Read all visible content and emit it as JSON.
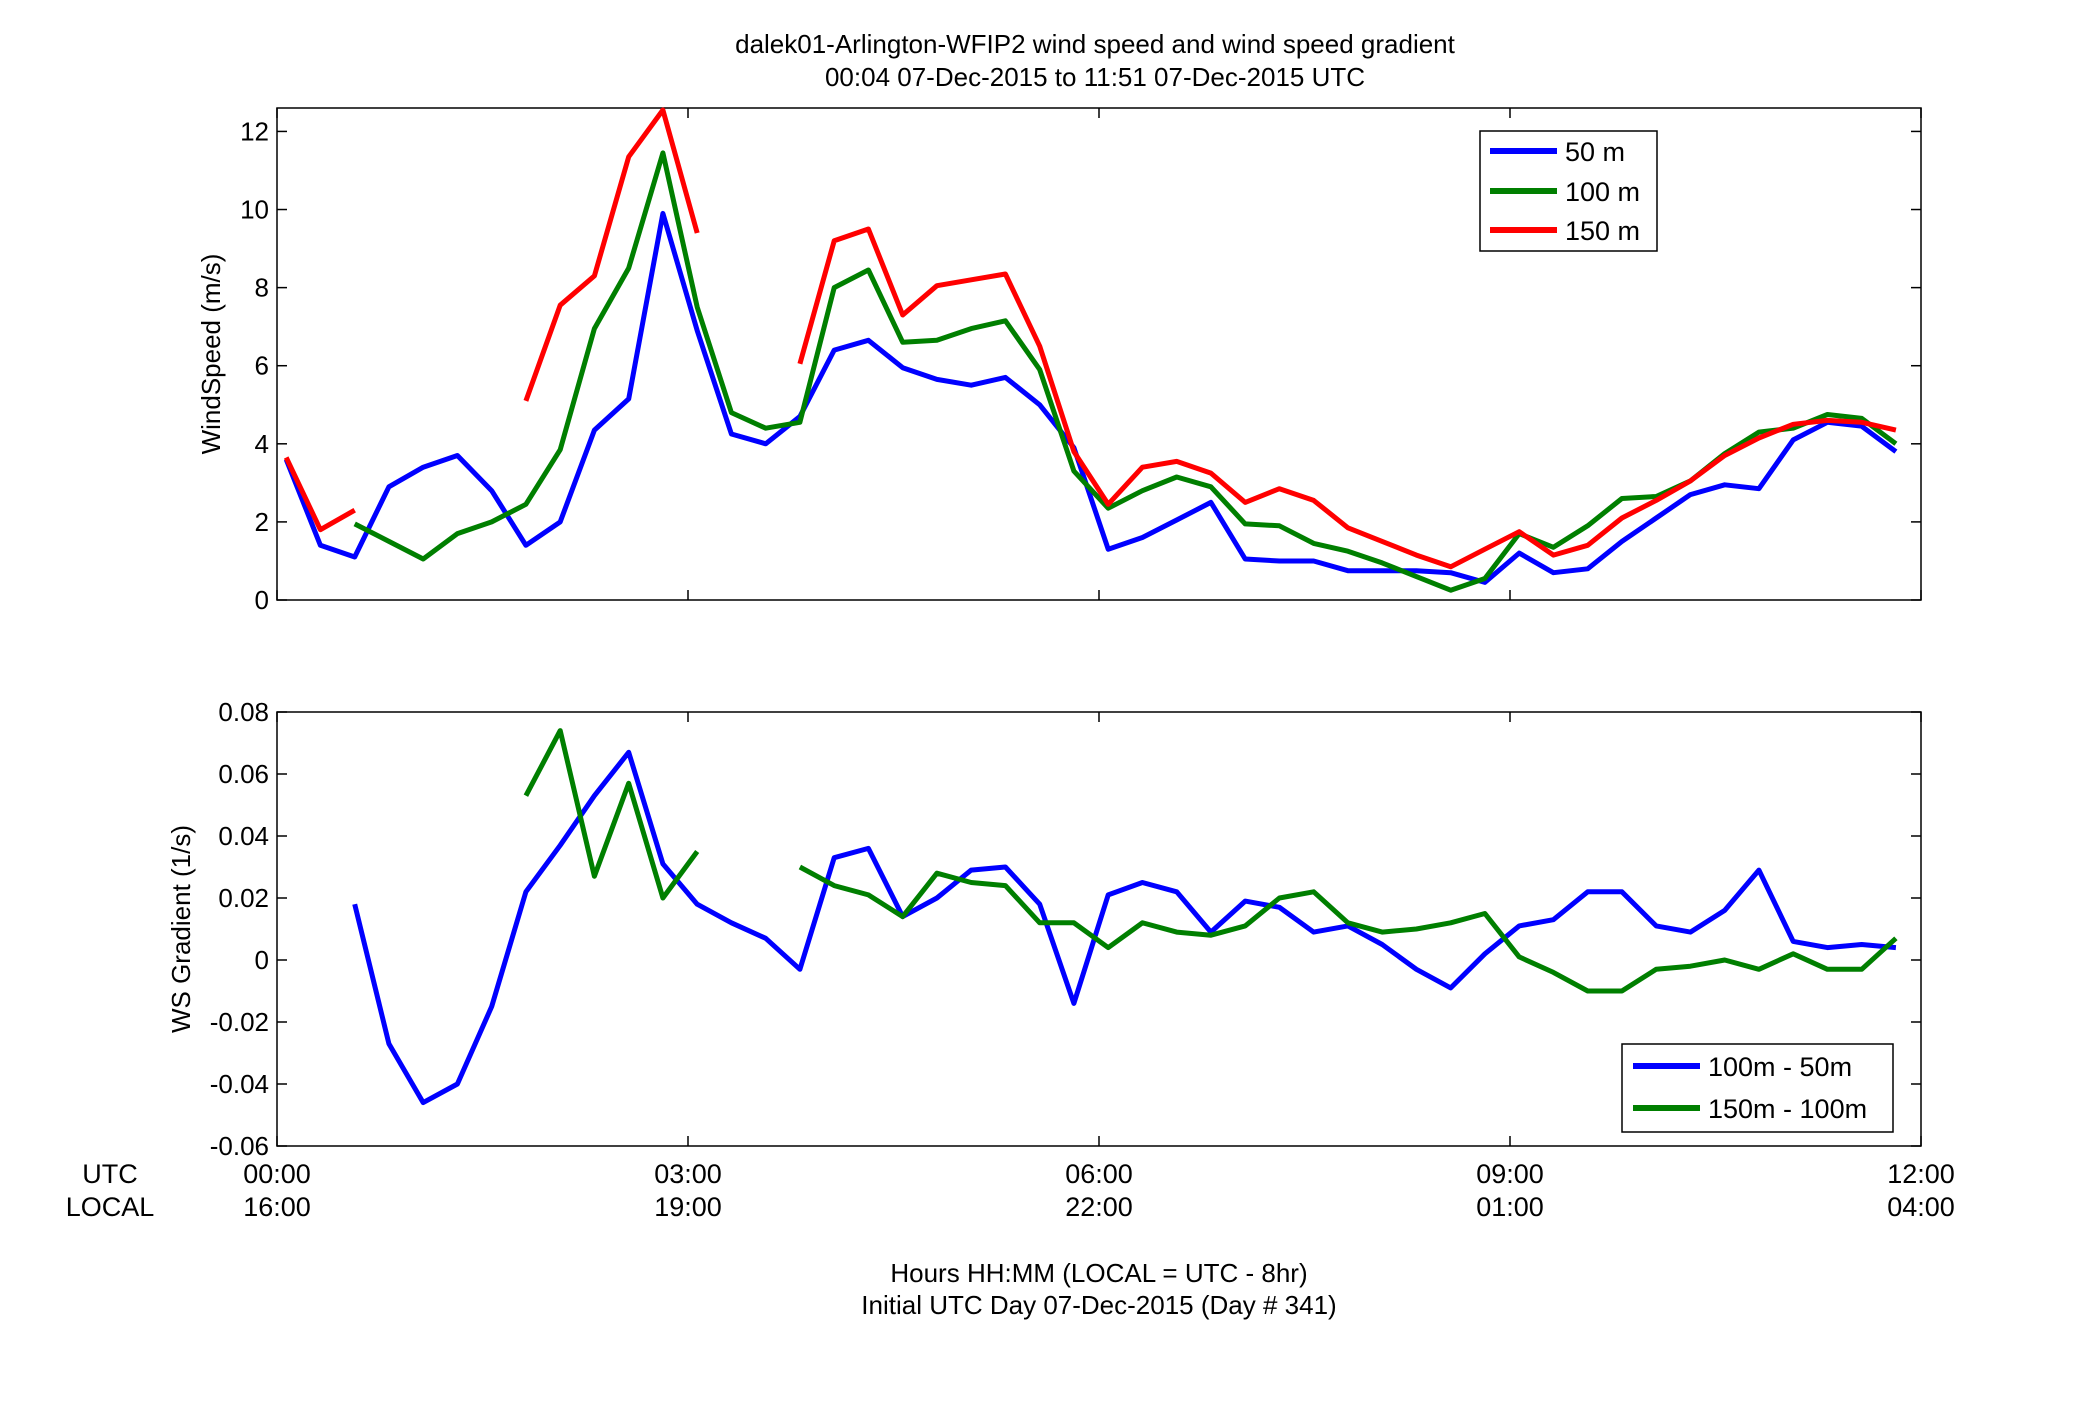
{
  "figure": {
    "title_line1": "dalek01-Arlington-WFIP2  wind speed and wind speed gradient",
    "title_line2": "00:04 07-Dec-2015 to 11:51 07-Dec-2015  UTC",
    "row_label_utc": "UTC",
    "row_label_local": "LOCAL",
    "xlabel_line1": "Hours HH:MM  (LOCAL = UTC - 8hr)",
    "xlabel_line2": "Initial UTC Day 07-Dec-2015 (Day # 341)",
    "utc_ticks": [
      "00:00",
      "03:00",
      "06:00",
      "09:00",
      "12:00"
    ],
    "local_ticks": [
      "16:00",
      "19:00",
      "22:00",
      "01:00",
      "04:00"
    ],
    "tick_hours": [
      0,
      3,
      6,
      9,
      12
    ]
  },
  "chart_data": [
    {
      "type": "line",
      "ylabel": "WindSpeed (m/s)",
      "xlim": [
        0,
        12
      ],
      "ylim": [
        0,
        12.6
      ],
      "yticks": [
        0,
        2,
        4,
        6,
        8,
        10,
        12
      ],
      "ytick_labels": [
        "0",
        "2",
        "4",
        "6",
        "8",
        "10",
        "12"
      ],
      "legend_position": "top-right",
      "grid": false,
      "x": [
        0.067,
        0.317,
        0.567,
        0.817,
        1.067,
        1.317,
        1.567,
        1.817,
        2.067,
        2.317,
        2.567,
        2.817,
        3.067,
        3.317,
        3.567,
        3.817,
        4.067,
        4.317,
        4.567,
        4.817,
        5.067,
        5.317,
        5.567,
        5.817,
        6.067,
        6.317,
        6.567,
        6.817,
        7.067,
        7.317,
        7.567,
        7.817,
        8.067,
        8.317,
        8.567,
        8.817,
        9.067,
        9.317,
        9.567,
        9.817,
        10.067,
        10.317,
        10.567,
        10.817,
        11.067,
        11.317,
        11.567,
        11.817
      ],
      "series": [
        {
          "name": "50 m",
          "color": "#0000ff",
          "values": [
            3.6,
            1.4,
            1.1,
            2.9,
            3.4,
            3.7,
            2.8,
            1.4,
            2.0,
            4.35,
            5.15,
            9.9,
            6.9,
            4.25,
            4.0,
            4.7,
            6.4,
            6.65,
            5.95,
            5.65,
            5.5,
            5.7,
            5.0,
            3.9,
            1.3,
            1.6,
            2.05,
            2.5,
            1.05,
            1.0,
            1.0,
            0.75,
            0.75,
            0.75,
            0.7,
            0.45,
            1.2,
            0.7,
            0.8,
            1.5,
            2.1,
            2.7,
            2.95,
            2.85,
            4.1,
            4.55,
            4.45,
            3.8
          ]
        },
        {
          "name": "100 m",
          "color": "#007f00",
          "values": [
            null,
            null,
            1.95,
            1.5,
            1.05,
            1.7,
            2.0,
            2.45,
            3.85,
            6.95,
            8.5,
            11.45,
            7.5,
            4.8,
            4.4,
            4.55,
            8.0,
            8.45,
            6.6,
            6.65,
            6.95,
            7.15,
            5.9,
            3.3,
            2.35,
            2.8,
            3.15,
            2.9,
            1.95,
            1.9,
            1.45,
            1.25,
            0.95,
            0.6,
            0.25,
            0.55,
            1.7,
            1.35,
            1.9,
            2.6,
            2.65,
            3.05,
            3.75,
            4.3,
            4.4,
            4.75,
            4.65,
            4.0
          ]
        },
        {
          "name": "150 m",
          "color": "#ff0000",
          "values": [
            3.65,
            1.8,
            2.3,
            null,
            null,
            null,
            null,
            5.1,
            7.55,
            8.3,
            11.35,
            12.55,
            9.4,
            null,
            null,
            6.05,
            9.2,
            9.5,
            7.3,
            8.05,
            8.2,
            8.35,
            6.5,
            3.8,
            2.45,
            3.4,
            3.55,
            3.25,
            2.5,
            2.85,
            2.55,
            1.85,
            1.5,
            1.15,
            0.85,
            1.3,
            1.75,
            1.15,
            1.4,
            2.1,
            2.55,
            3.05,
            3.7,
            4.15,
            4.5,
            4.6,
            4.55,
            4.35
          ]
        }
      ]
    },
    {
      "type": "line",
      "ylabel": "WS Gradient (1/s)",
      "xlim": [
        0,
        12
      ],
      "ylim": [
        -0.06,
        0.08
      ],
      "yticks": [
        -0.06,
        -0.04,
        -0.02,
        0,
        0.02,
        0.04,
        0.06,
        0.08
      ],
      "ytick_labels": [
        "-0.06",
        "-0.04",
        "-0.02",
        "0",
        "0.02",
        "0.04",
        "0.06",
        "0.08"
      ],
      "legend_position": "bottom-right",
      "grid": false,
      "x": [
        0.067,
        0.317,
        0.567,
        0.817,
        1.067,
        1.317,
        1.567,
        1.817,
        2.067,
        2.317,
        2.567,
        2.817,
        3.067,
        3.317,
        3.567,
        3.817,
        4.067,
        4.317,
        4.567,
        4.817,
        5.067,
        5.317,
        5.567,
        5.817,
        6.067,
        6.317,
        6.567,
        6.817,
        7.067,
        7.317,
        7.567,
        7.817,
        8.067,
        8.317,
        8.567,
        8.817,
        9.067,
        9.317,
        9.567,
        9.817,
        10.067,
        10.317,
        10.567,
        10.817,
        11.067,
        11.317,
        11.567,
        11.817
      ],
      "series": [
        {
          "name": "100m - 50m",
          "color": "#0000ff",
          "values": [
            null,
            null,
            0.018,
            -0.027,
            -0.046,
            -0.04,
            -0.015,
            0.022,
            0.037,
            0.053,
            0.067,
            0.031,
            0.018,
            0.012,
            0.007,
            -0.003,
            0.033,
            0.036,
            0.014,
            0.02,
            0.029,
            0.03,
            0.018,
            -0.014,
            0.021,
            0.025,
            0.022,
            0.009,
            0.019,
            0.017,
            0.009,
            0.011,
            0.005,
            -0.003,
            -0.009,
            0.002,
            0.011,
            0.013,
            0.022,
            0.022,
            0.011,
            0.009,
            0.016,
            0.029,
            0.006,
            0.004,
            0.005,
            0.004
          ]
        },
        {
          "name": "150m - 100m",
          "color": "#007f00",
          "values": [
            null,
            null,
            null,
            null,
            null,
            null,
            null,
            0.053,
            0.074,
            0.027,
            0.057,
            0.02,
            0.035,
            null,
            null,
            0.03,
            0.024,
            0.021,
            0.014,
            0.028,
            0.025,
            0.024,
            0.012,
            0.012,
            0.004,
            0.012,
            0.009,
            0.008,
            0.011,
            0.02,
            0.022,
            0.012,
            0.009,
            0.01,
            0.012,
            0.015,
            0.001,
            -0.004,
            -0.01,
            -0.01,
            -0.003,
            -0.002,
            0.0,
            -0.003,
            0.002,
            -0.003,
            -0.003,
            0.007
          ]
        }
      ]
    }
  ]
}
